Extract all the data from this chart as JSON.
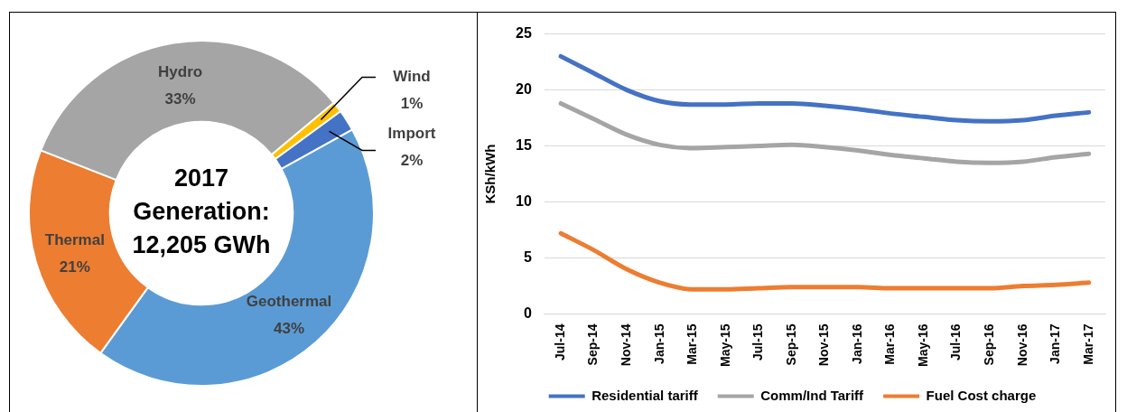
{
  "chart_data": [
    {
      "type": "donut",
      "title": "2017 Generation: 12,205 GWh",
      "categories": [
        "Geothermal",
        "Thermal",
        "Hydro",
        "Wind",
        "Import"
      ],
      "values": [
        43,
        21,
        33,
        1,
        2
      ],
      "colors": [
        "#5b9bd5",
        "#ed7d31",
        "#a5a5a5",
        "#ffc000",
        "#4472c4"
      ],
      "value_labels": [
        "43%",
        "21%",
        "33%",
        "1%",
        "2%"
      ]
    },
    {
      "type": "line",
      "categories": [
        "Jul-14",
        "Sep-14",
        "Nov-14",
        "Jan-15",
        "Mar-15",
        "May-15",
        "Jul-15",
        "Sep-15",
        "Nov-15",
        "Jan-16",
        "Mar-16",
        "May-16",
        "Jul-16",
        "Sep-16",
        "Nov-16",
        "Jan-17",
        "Mar-17"
      ],
      "series": [
        {
          "name": "Residential tariff",
          "color": "#4472c4",
          "values": [
            23.0,
            21.5,
            20.0,
            19.0,
            18.7,
            18.7,
            18.8,
            18.8,
            18.6,
            18.3,
            17.9,
            17.6,
            17.3,
            17.2,
            17.3,
            17.7,
            18.0
          ]
        },
        {
          "name": "Comm/Ind Tariff",
          "color": "#a5a5a5",
          "values": [
            18.8,
            17.4,
            16.0,
            15.1,
            14.8,
            14.9,
            15.0,
            15.1,
            14.9,
            14.6,
            14.2,
            13.9,
            13.6,
            13.5,
            13.6,
            14.0,
            14.3
          ]
        },
        {
          "name": "Fuel Cost charge",
          "color": "#ed7d31",
          "values": [
            7.2,
            5.7,
            4.0,
            2.8,
            2.2,
            2.2,
            2.3,
            2.4,
            2.4,
            2.4,
            2.3,
            2.3,
            2.3,
            2.3,
            2.5,
            2.6,
            2.8
          ]
        }
      ],
      "ylabel": "KSh/kWh",
      "ylim": [
        0,
        25
      ],
      "yticks": [
        0,
        5,
        10,
        15,
        20,
        25
      ],
      "grid": "y",
      "legend": "bottom"
    }
  ]
}
